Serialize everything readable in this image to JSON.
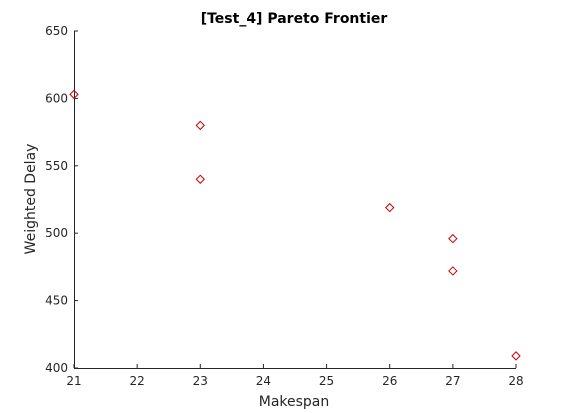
{
  "chart_data": {
    "type": "scatter",
    "title": "[Test_4] Pareto Frontier",
    "xlabel": "Makespan",
    "ylabel": "Weighted Delay",
    "xlim": [
      21,
      28
    ],
    "ylim": [
      400,
      650
    ],
    "xticks": [
      21,
      22,
      23,
      24,
      25,
      26,
      27,
      28
    ],
    "yticks": [
      400,
      450,
      500,
      550,
      600,
      650
    ],
    "grid": false,
    "marker": "diamond",
    "marker_color": "#cc0000",
    "points": [
      {
        "x": 21,
        "y": 603
      },
      {
        "x": 23,
        "y": 580
      },
      {
        "x": 23,
        "y": 540
      },
      {
        "x": 26,
        "y": 519
      },
      {
        "x": 27,
        "y": 496
      },
      {
        "x": 27,
        "y": 472
      },
      {
        "x": 28,
        "y": 409
      }
    ]
  }
}
